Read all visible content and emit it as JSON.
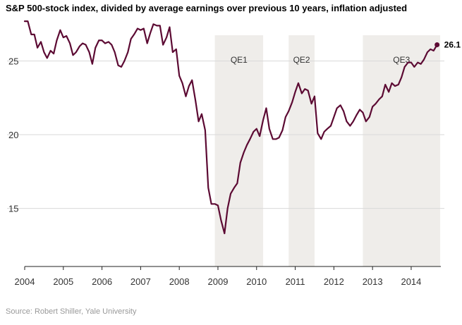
{
  "chart_data": {
    "type": "line",
    "title": "S&P 500-stock index, divided by average earnings over previous 10 years, inflation adjusted",
    "source": "Source: Robert Shiller, Yale University",
    "xlabel": "",
    "ylabel": "",
    "xlim": [
      2004.0,
      2014.95
    ],
    "ylim": [
      11.2,
      27.8
    ],
    "yticks": [
      15,
      20,
      25
    ],
    "ytick_labels": [
      "15",
      "20",
      "25"
    ],
    "xticks": [
      2004,
      2005,
      2006,
      2007,
      2008,
      2009,
      2010,
      2011,
      2012,
      2013,
      2014
    ],
    "xtick_labels": [
      "2004",
      "2005",
      "2006",
      "2007",
      "2008",
      "2009",
      "2010",
      "2011",
      "2012",
      "2013",
      "2014"
    ],
    "grid": "horizontal",
    "line_color": "#5c0a33",
    "shaded_regions": [
      {
        "label": "QE1",
        "start": 2008.92,
        "end": 2010.17
      },
      {
        "label": "QE2",
        "start": 2010.83,
        "end": 2011.5
      },
      {
        "label": "QE3",
        "start": 2012.75,
        "end": 2014.75
      }
    ],
    "end_label": "26.1",
    "series": [
      {
        "x": [
          2004.0,
          2004.08,
          2004.17,
          2004.25,
          2004.33,
          2004.42,
          2004.5,
          2004.58,
          2004.67,
          2004.75,
          2004.83,
          2004.92,
          2005.0,
          2005.08,
          2005.17,
          2005.25,
          2005.33,
          2005.42,
          2005.5,
          2005.58,
          2005.67,
          2005.75,
          2005.83,
          2005.92,
          2006.0,
          2006.08,
          2006.17,
          2006.25,
          2006.33,
          2006.42,
          2006.5,
          2006.58,
          2006.67,
          2006.75,
          2006.83,
          2006.92,
          2007.0,
          2007.08,
          2007.17,
          2007.25,
          2007.33,
          2007.42,
          2007.5,
          2007.58,
          2007.67,
          2007.75,
          2007.83,
          2007.92,
          2008.0,
          2008.08,
          2008.17,
          2008.25,
          2008.33,
          2008.42,
          2008.5,
          2008.58,
          2008.67,
          2008.75,
          2008.83,
          2008.92,
          2009.0,
          2009.08,
          2009.17,
          2009.25,
          2009.33,
          2009.42,
          2009.5,
          2009.58,
          2009.67,
          2009.75,
          2009.83,
          2009.92,
          2010.0,
          2010.08,
          2010.17,
          2010.25,
          2010.33,
          2010.42,
          2010.5,
          2010.58,
          2010.67,
          2010.75,
          2010.83,
          2010.92,
          2011.0,
          2011.08,
          2011.17,
          2011.25,
          2011.33,
          2011.42,
          2011.5,
          2011.58,
          2011.67,
          2011.75,
          2011.83,
          2011.92,
          2012.0,
          2012.08,
          2012.17,
          2012.25,
          2012.33,
          2012.42,
          2012.5,
          2012.58,
          2012.67,
          2012.75,
          2012.83,
          2012.92,
          2013.0,
          2013.08,
          2013.17,
          2013.25,
          2013.33,
          2013.42,
          2013.5,
          2013.58,
          2013.67,
          2013.75,
          2013.83,
          2013.92,
          2014.0,
          2014.08,
          2014.17,
          2014.25,
          2014.33,
          2014.42,
          2014.5,
          2014.58,
          2014.67
        ],
        "values": [
          27.7,
          27.7,
          26.8,
          26.8,
          25.9,
          26.3,
          25.6,
          25.2,
          25.7,
          25.5,
          26.4,
          27.1,
          26.6,
          26.7,
          26.2,
          25.4,
          25.6,
          26.0,
          26.2,
          26.1,
          25.6,
          24.8,
          25.9,
          26.4,
          26.4,
          26.2,
          26.3,
          26.1,
          25.6,
          24.7,
          24.6,
          25.0,
          25.6,
          26.5,
          26.8,
          27.2,
          27.1,
          27.2,
          26.2,
          26.9,
          27.5,
          27.4,
          27.4,
          26.1,
          26.6,
          27.3,
          25.6,
          25.8,
          24.0,
          23.5,
          22.6,
          23.3,
          23.7,
          22.3,
          20.9,
          21.4,
          20.3,
          16.4,
          15.3,
          15.3,
          15.2,
          14.2,
          13.3,
          15.0,
          16.0,
          16.4,
          16.7,
          18.1,
          18.8,
          19.3,
          19.7,
          20.2,
          20.4,
          19.9,
          21.0,
          21.8,
          20.4,
          19.7,
          19.7,
          19.8,
          20.3,
          21.2,
          21.6,
          22.2,
          22.9,
          23.5,
          22.8,
          23.1,
          23.0,
          22.1,
          22.6,
          20.1,
          19.7,
          20.2,
          20.4,
          20.6,
          21.2,
          21.8,
          22.0,
          21.6,
          20.9,
          20.6,
          20.9,
          21.3,
          21.7,
          21.5,
          20.9,
          21.2,
          21.9,
          22.1,
          22.4,
          22.6,
          23.4,
          22.9,
          23.5,
          23.3,
          23.4,
          23.9,
          24.6,
          24.9,
          24.9,
          24.6,
          24.9,
          24.8,
          25.1,
          25.6,
          25.8,
          25.7,
          26.1
        ]
      }
    ]
  }
}
